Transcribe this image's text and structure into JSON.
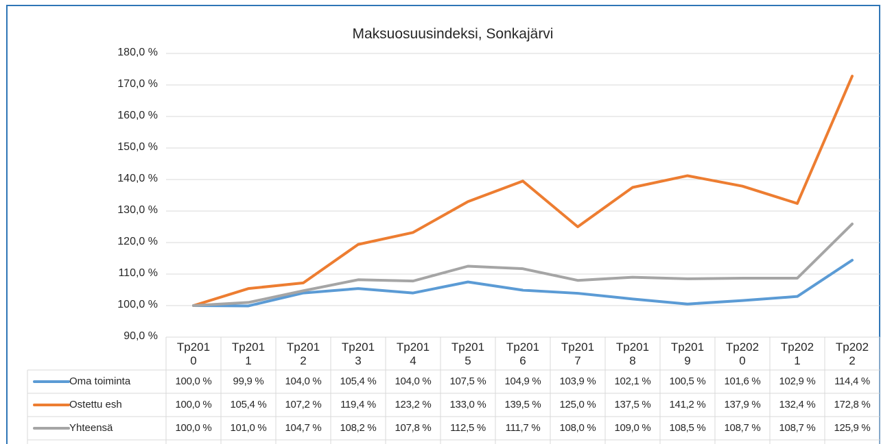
{
  "chart_data": {
    "type": "line",
    "title": "Maksuosuusindeksi, Sonkajärvi",
    "categories": [
      "Tp2010",
      "Tp2011",
      "Tp2012",
      "Tp2013",
      "Tp2014",
      "Tp2015",
      "Tp2016",
      "Tp2017",
      "Tp2018",
      "Tp2019",
      "Tp2020",
      "Tp2021",
      "Tp2022"
    ],
    "series": [
      {
        "name": "Oma toiminta",
        "color": "#5b9bd5",
        "values": [
          100.0,
          99.9,
          104.0,
          105.4,
          104.0,
          107.5,
          104.9,
          103.9,
          102.1,
          100.5,
          101.6,
          102.9,
          114.4
        ],
        "value_labels": [
          "100,0 %",
          "99,9 %",
          "104,0 %",
          "105,4 %",
          "104,0 %",
          "107,5 %",
          "104,9 %",
          "103,9 %",
          "102,1 %",
          "100,5 %",
          "101,6 %",
          "102,9 %",
          "114,4 %"
        ]
      },
      {
        "name": "Ostettu esh",
        "color": "#ed7d31",
        "values": [
          100.0,
          105.4,
          107.2,
          119.4,
          123.2,
          133.0,
          139.5,
          125.0,
          137.5,
          141.2,
          137.9,
          132.4,
          172.8
        ],
        "value_labels": [
          "100,0 %",
          "105,4 %",
          "107,2 %",
          "119,4 %",
          "123,2 %",
          "133,0 %",
          "139,5 %",
          "125,0 %",
          "137,5 %",
          "141,2 %",
          "137,9 %",
          "132,4 %",
          "172,8 %"
        ]
      },
      {
        "name": "Yhteensä",
        "color": "#a5a5a5",
        "values": [
          100.0,
          101.0,
          104.7,
          108.2,
          107.8,
          112.5,
          111.7,
          108.0,
          109.0,
          108.5,
          108.7,
          108.7,
          125.9
        ],
        "value_labels": [
          "100,0 %",
          "101,0 %",
          "104,7 %",
          "108,2 %",
          "107,8 %",
          "112,5 %",
          "111,7 %",
          "108,0 %",
          "109,0 %",
          "108,5 %",
          "108,7 %",
          "108,7 %",
          "125,9 %"
        ]
      }
    ],
    "ylim": [
      90,
      180
    ],
    "yticks": [
      {
        "value": 90,
        "label": "90,0 %"
      },
      {
        "value": 100,
        "label": "100,0 %"
      },
      {
        "value": 110,
        "label": "110,0 %"
      },
      {
        "value": 120,
        "label": "120,0 %"
      },
      {
        "value": 130,
        "label": "130,0 %"
      },
      {
        "value": 140,
        "label": "140,0 %"
      },
      {
        "value": 150,
        "label": "150,0 %"
      },
      {
        "value": 160,
        "label": "160,0 %"
      },
      {
        "value": 170,
        "label": "170,0 %"
      },
      {
        "value": 180,
        "label": "180,0 %"
      }
    ],
    "grid": true
  }
}
